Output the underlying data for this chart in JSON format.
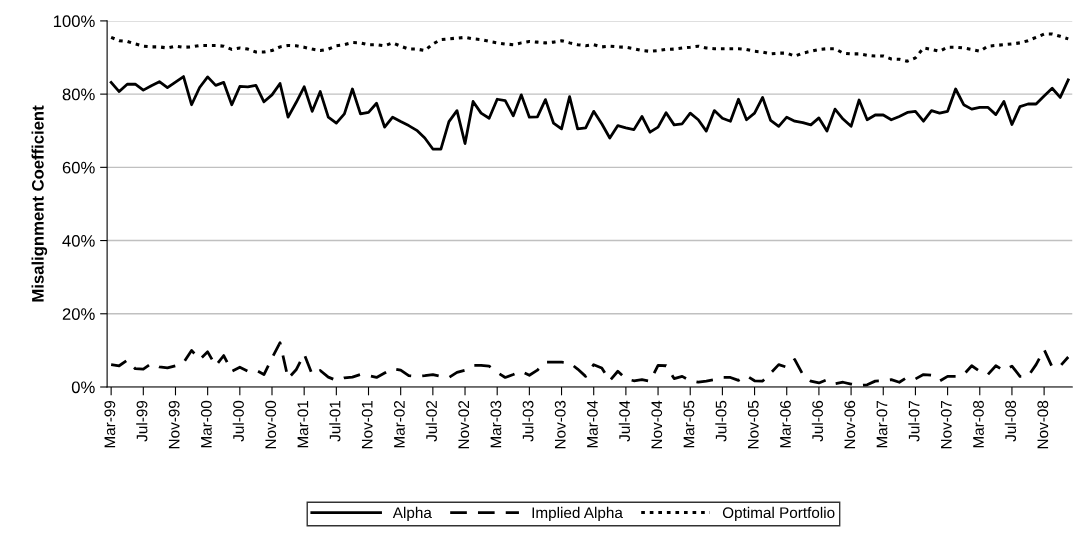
{
  "chart_data": {
    "type": "line",
    "ylabel": "Misalignment Coefficient",
    "categories": [
      "Mar-99",
      null,
      null,
      null,
      "Jul-99",
      null,
      null,
      null,
      "Nov-99",
      null,
      null,
      null,
      "Mar-00",
      null,
      null,
      null,
      "Jul-00",
      null,
      null,
      null,
      "Nov-00",
      null,
      null,
      null,
      "Mar-01",
      null,
      null,
      null,
      "Jul-01",
      null,
      null,
      null,
      "Nov-01",
      null,
      null,
      null,
      "Mar-02",
      null,
      null,
      null,
      "Jul-02",
      null,
      null,
      null,
      "Nov-02",
      null,
      null,
      null,
      "Mar-03",
      null,
      null,
      null,
      "Jul-03",
      null,
      null,
      null,
      "Nov-03",
      null,
      null,
      null,
      "Mar-04",
      null,
      null,
      null,
      "Jul-04",
      null,
      null,
      null,
      "Nov-04",
      null,
      null,
      null,
      "Mar-05",
      null,
      null,
      null,
      "Jul-05",
      null,
      null,
      null,
      "Nov-05",
      null,
      null,
      null,
      "Mar-06",
      null,
      null,
      null,
      "Jul-06",
      null,
      null,
      null,
      "Nov-06",
      null,
      null,
      null,
      "Mar-07",
      null,
      null,
      null,
      "Jul-07",
      null,
      null,
      null,
      "Nov-07",
      null,
      null,
      null,
      "Mar-08",
      null,
      null,
      null,
      "Jul-08",
      null,
      null,
      null,
      "Nov-08",
      null,
      null,
      null
    ],
    "series": [
      {
        "name": "Alpha",
        "color": "#000000",
        "line_style": "solid",
        "values": [
          83.2,
          80.7,
          82.7,
          82.7,
          81.1,
          82.3,
          83.4,
          81.8,
          83.3,
          84.8,
          77.1,
          81.8,
          84.7,
          82.4,
          83.2,
          77.1,
          82.1,
          82,
          82.4,
          77.9,
          79.8,
          82.9,
          73.7,
          77.7,
          82,
          75.3,
          80.7,
          73.7,
          72.1,
          74.6,
          81.4,
          74.6,
          75,
          77.5,
          71,
          73.7,
          72.5,
          71.4,
          70.1,
          68,
          65,
          65,
          72.5,
          75.5,
          66.5,
          78,
          74.8,
          73.4,
          78.6,
          78.2,
          74.1,
          79.8,
          73.7,
          73.8,
          78.5,
          72.1,
          70.5,
          79.3,
          70.5,
          70.8,
          75.3,
          71.9,
          68,
          71.4,
          70.8,
          70.3,
          73.9,
          69.6,
          71,
          74.9,
          71.6,
          71.9,
          74.8,
          73,
          69.9,
          75.5,
          73.4,
          72.6,
          78.6,
          73,
          74.8,
          79.1,
          72.8,
          71.2,
          73.7,
          72.6,
          72.2,
          71.6,
          73.5,
          69.9,
          75.9,
          73.2,
          71.2,
          78.4,
          73,
          74.3,
          74.3,
          73,
          73.9,
          75,
          75.3,
          72.6,
          75.5,
          74.8,
          75.3,
          81.4,
          77.1,
          75.9,
          76.4,
          76.4,
          74.4,
          78,
          71.7,
          76.6,
          77.3,
          77.3,
          79.5,
          81.6,
          79.1,
          83.9
        ]
      },
      {
        "name": "Implied Alpha",
        "color": "#000000",
        "line_style": "dashed",
        "values": [
          6.1,
          5.8,
          7.3,
          5,
          4.9,
          6.4,
          5.5,
          5.2,
          5.8,
          6.6,
          10,
          7.5,
          9.6,
          5.8,
          8.6,
          4.3,
          5.4,
          4.3,
          4.6,
          3.4,
          7.9,
          12.1,
          2.3,
          4.7,
          9,
          3.4,
          4.5,
          2.7,
          1.8,
          2.5,
          2.7,
          3.4,
          3.1,
          2.6,
          3.8,
          5,
          4.6,
          3.1,
          2.9,
          3.1,
          3.4,
          2.9,
          2.6,
          4,
          4.6,
          5.9,
          5.9,
          5.7,
          4,
          2.6,
          3.4,
          4.3,
          3.2,
          4.6,
          6.8,
          6.8,
          6.8,
          6.6,
          4.9,
          2.9,
          6.1,
          5.2,
          1.7,
          4.3,
          2.2,
          1.7,
          2,
          1.6,
          5.9,
          5.8,
          2.3,
          2.9,
          1.7,
          1.3,
          1.6,
          2,
          2.6,
          2.6,
          1.8,
          3.1,
          1.7,
          1.6,
          3.8,
          6.1,
          5.4,
          7.5,
          3.4,
          1.6,
          1.1,
          2,
          0.9,
          1.3,
          0.8,
          0.4,
          0.6,
          1.6,
          1.7,
          2,
          1.3,
          2.7,
          2.2,
          3.4,
          3.2,
          1.6,
          2.9,
          2.9,
          3.4,
          5.8,
          4.3,
          3.4,
          5.8,
          4.5,
          5.7,
          2.9,
          2.9,
          6.1,
          10.2,
          5.5,
          5.7,
          8.2
        ]
      },
      {
        "name": "Optimal Portfolio",
        "color": "#000000",
        "line_style": "dotted",
        "values": [
          95.5,
          94.6,
          94.4,
          93.7,
          93.1,
          92.9,
          92.9,
          92.6,
          93.1,
          92.8,
          92.9,
          93.3,
          93.3,
          93.3,
          93.1,
          92.2,
          92.6,
          92.3,
          91.5,
          91.5,
          91.9,
          92.9,
          93.3,
          93.2,
          92.8,
          92.3,
          91.9,
          92.3,
          93.2,
          93.5,
          94.1,
          94,
          93.5,
          93.5,
          93.2,
          94,
          93.1,
          92.3,
          92.3,
          91.9,
          93.7,
          94.9,
          95.1,
          95.3,
          95.5,
          95.1,
          94.9,
          94.4,
          94,
          93.7,
          93.5,
          94,
          94.4,
          94.2,
          94,
          94.2,
          94.6,
          94,
          93.5,
          93.2,
          93.5,
          92.9,
          93.1,
          92.9,
          92.8,
          92.4,
          91.9,
          91.7,
          91.9,
          92.2,
          92.3,
          92.6,
          92.8,
          93.1,
          92.6,
          92.4,
          92.4,
          92.4,
          92.4,
          92.2,
          91.7,
          91.5,
          91,
          91.2,
          91.2,
          90.4,
          91.2,
          91.7,
          92.2,
          92.4,
          92.4,
          91.2,
          91,
          91,
          90.6,
          90.4,
          90.4,
          89.6,
          89.5,
          89,
          89.9,
          92.6,
          92.2,
          91.7,
          92.8,
          92.8,
          92.6,
          92.2,
          91.7,
          93.1,
          93.3,
          93.5,
          93.7,
          94,
          94.6,
          95.5,
          96.4,
          96.4,
          95.8,
          95.1
        ]
      }
    ],
    "ylim": [
      0,
      100
    ],
    "yticks": [
      {
        "value": 0,
        "label": "0%"
      },
      {
        "value": 20,
        "label": "20%"
      },
      {
        "value": 40,
        "label": "40%"
      },
      {
        "value": 60,
        "label": "60%"
      },
      {
        "value": 80,
        "label": "80%"
      },
      {
        "value": 100,
        "label": "100%"
      }
    ],
    "grid": "y",
    "legend": "bottom",
    "marker": "none"
  }
}
